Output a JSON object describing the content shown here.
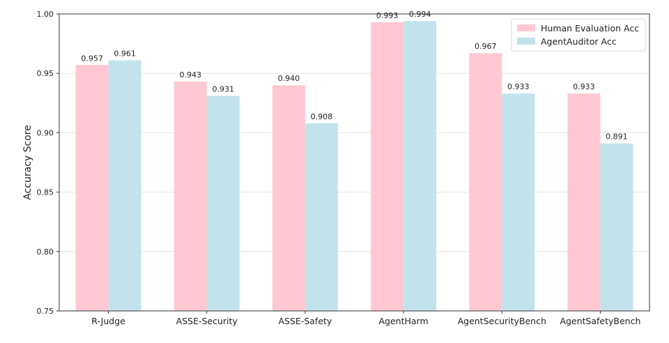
{
  "chart_data": {
    "type": "bar",
    "title": "",
    "xlabel": "",
    "ylabel": "Accuracy Score",
    "ylim": [
      0.75,
      1.0
    ],
    "yticks": [
      "0.75",
      "0.80",
      "0.85",
      "0.90",
      "0.95",
      "1.00"
    ],
    "grid": true,
    "legend_position": "top-right",
    "categories": [
      "R-Judge",
      "ASSE-Security",
      "ASSE-Safety",
      "AgentHarm",
      "AgentSecurityBench",
      "AgentSafetyBench"
    ],
    "series": [
      {
        "name": "Human Evaluation Acc",
        "color": "#ffc8d3",
        "values": [
          0.957,
          0.943,
          0.94,
          0.993,
          0.967,
          0.933
        ],
        "labels": [
          "0.957",
          "0.943",
          "0.940",
          "0.993",
          "0.967",
          "0.933"
        ]
      },
      {
        "name": "AgentAuditor Acc",
        "color": "#c3e3ec",
        "values": [
          0.961,
          0.931,
          0.908,
          0.994,
          0.933,
          0.891
        ],
        "labels": [
          "0.961",
          "0.931",
          "0.908",
          "0.994",
          "0.933",
          "0.891"
        ]
      }
    ]
  }
}
